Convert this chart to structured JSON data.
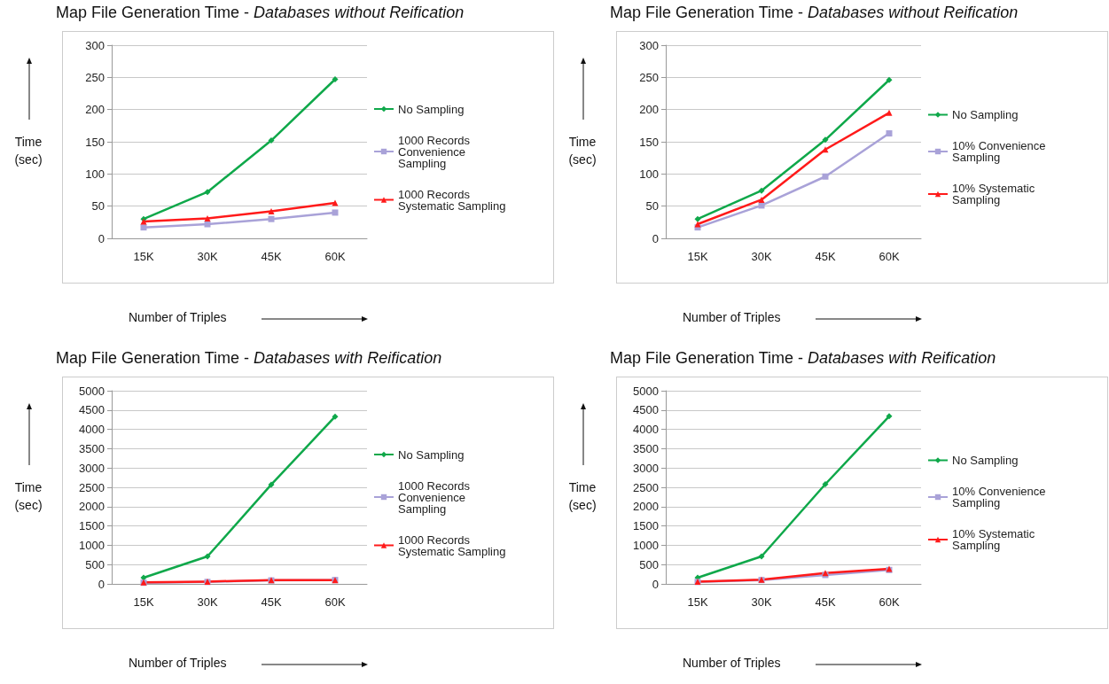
{
  "chart_data": [
    {
      "type": "line",
      "title": "Map File Generation Time - Databases without Reification",
      "xlabel": "Number of Triples",
      "ylabel": "Time (sec)",
      "categories": [
        "15K",
        "30K",
        "45K",
        "60K"
      ],
      "ylim": [
        0,
        300
      ],
      "yticks": [
        0,
        50,
        100,
        150,
        200,
        250,
        300
      ],
      "grid": "y",
      "legend": "right",
      "series": [
        {
          "name": "No Sampling",
          "color": "#0fa84a",
          "marker": "diamond",
          "values": [
            30,
            72,
            152,
            247
          ]
        },
        {
          "name": "1000 Records Convenience Sampling",
          "color": "#a9a2d8",
          "marker": "square",
          "values": [
            17,
            22,
            30,
            40
          ]
        },
        {
          "name": "1000 Records Systematic Sampling",
          "color": "#ff1a1a",
          "marker": "triangle",
          "values": [
            26,
            31,
            42,
            55
          ]
        }
      ]
    },
    {
      "type": "line",
      "title": "Map File Generation Time - Databases without Reification",
      "xlabel": "Number of Triples",
      "ylabel": "Time (sec)",
      "categories": [
        "15K",
        "30K",
        "45K",
        "60K"
      ],
      "ylim": [
        0,
        300
      ],
      "yticks": [
        0,
        50,
        100,
        150,
        200,
        250,
        300
      ],
      "grid": "y",
      "legend": "right",
      "series": [
        {
          "name": "No Sampling",
          "color": "#0fa84a",
          "marker": "diamond",
          "values": [
            30,
            74,
            153,
            246
          ]
        },
        {
          "name": "10% Convenience Sampling",
          "color": "#a9a2d8",
          "marker": "square",
          "values": [
            17,
            51,
            96,
            163
          ]
        },
        {
          "name": "10% Systematic Sampling",
          "color": "#ff1a1a",
          "marker": "triangle",
          "values": [
            22,
            60,
            138,
            195
          ]
        }
      ]
    },
    {
      "type": "line",
      "title": "Map File Generation Time - Databases with Reification",
      "xlabel": "Number of Triples",
      "ylabel": "Time (sec)",
      "categories": [
        "15K",
        "30K",
        "45K",
        "60K"
      ],
      "ylim": [
        0,
        5000
      ],
      "yticks": [
        0,
        500,
        1000,
        1500,
        2000,
        2500,
        3000,
        3500,
        4000,
        4500,
        5000
      ],
      "grid": "y",
      "legend": "right",
      "series": [
        {
          "name": "No Sampling",
          "color": "#0fa84a",
          "marker": "diamond",
          "values": [
            160,
            710,
            2570,
            4330
          ]
        },
        {
          "name": "1000 Records Convenience Sampling",
          "color": "#a9a2d8",
          "marker": "square",
          "values": [
            30,
            50,
            90,
            100
          ]
        },
        {
          "name": "1000 Records Systematic Sampling",
          "color": "#ff1a1a",
          "marker": "triangle",
          "values": [
            40,
            60,
            100,
            100
          ]
        }
      ]
    },
    {
      "type": "line",
      "title": "Map File Generation Time - Databases with Reification",
      "xlabel": "Number of Triples",
      "ylabel": "Time (sec)",
      "categories": [
        "15K",
        "30K",
        "45K",
        "60K"
      ],
      "ylim": [
        0,
        5000
      ],
      "yticks": [
        0,
        500,
        1000,
        1500,
        2000,
        2500,
        3000,
        3500,
        4000,
        4500,
        5000
      ],
      "grid": "y",
      "legend": "right",
      "series": [
        {
          "name": "No Sampling",
          "color": "#0fa84a",
          "marker": "diamond",
          "values": [
            160,
            710,
            2580,
            4340
          ]
        },
        {
          "name": "10% Convenience Sampling",
          "color": "#a9a2d8",
          "marker": "square",
          "values": [
            50,
            100,
            230,
            360
          ]
        },
        {
          "name": "10% Systematic Sampling",
          "color": "#ff1a1a",
          "marker": "triangle",
          "values": [
            60,
            110,
            280,
            390
          ]
        }
      ]
    }
  ]
}
